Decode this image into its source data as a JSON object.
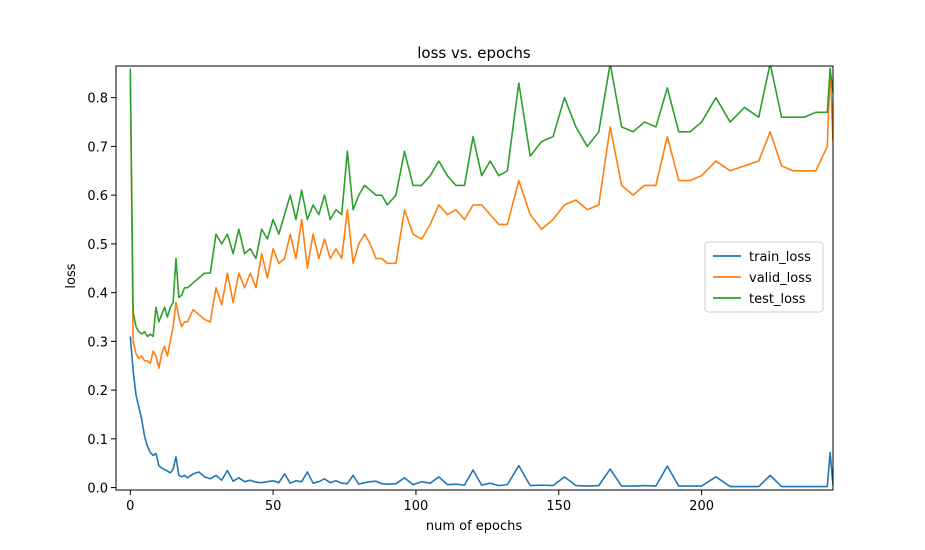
{
  "chart_data": {
    "type": "line",
    "title": "loss vs. epochs",
    "xlabel": "num of epochs",
    "ylabel": "loss",
    "xlim": [
      -5,
      246
    ],
    "ylim": [
      -0.005,
      0.865
    ],
    "xticks": [
      0,
      50,
      100,
      150,
      200
    ],
    "yticks": [
      0.0,
      0.1,
      0.2,
      0.3,
      0.4,
      0.5,
      0.6,
      0.7,
      0.8
    ],
    "grid": false,
    "legend_position": "center-right",
    "series": [
      {
        "name": "train_loss",
        "color": "#1f77b4",
        "x": [
          0,
          1,
          2,
          3,
          4,
          5,
          6,
          7,
          8,
          9,
          10,
          11,
          12,
          13,
          14,
          15,
          16,
          17,
          18,
          19,
          20,
          22,
          24,
          26,
          28,
          30,
          32,
          34,
          36,
          38,
          40,
          42,
          44,
          46,
          48,
          50,
          52,
          54,
          56,
          58,
          60,
          62,
          64,
          66,
          68,
          70,
          72,
          74,
          76,
          78,
          80,
          82,
          84,
          86,
          88,
          90,
          93,
          96,
          99,
          102,
          105,
          108,
          111,
          114,
          117,
          120,
          123,
          126,
          129,
          132,
          136,
          140,
          144,
          148,
          152,
          156,
          160,
          164,
          168,
          172,
          176,
          180,
          184,
          188,
          192,
          196,
          200,
          205,
          210,
          215,
          220,
          224,
          228,
          232,
          236,
          240,
          244,
          245,
          246
        ],
        "y": [
          0.31,
          0.24,
          0.19,
          0.165,
          0.14,
          0.105,
          0.085,
          0.072,
          0.066,
          0.07,
          0.045,
          0.04,
          0.037,
          0.034,
          0.03,
          0.038,
          0.063,
          0.025,
          0.022,
          0.025,
          0.02,
          0.028,
          0.032,
          0.022,
          0.018,
          0.025,
          0.015,
          0.035,
          0.013,
          0.02,
          0.012,
          0.015,
          0.011,
          0.01,
          0.012,
          0.014,
          0.01,
          0.028,
          0.009,
          0.014,
          0.012,
          0.032,
          0.009,
          0.012,
          0.018,
          0.01,
          0.014,
          0.009,
          0.008,
          0.025,
          0.007,
          0.01,
          0.012,
          0.013,
          0.008,
          0.007,
          0.008,
          0.02,
          0.006,
          0.012,
          0.009,
          0.022,
          0.006,
          0.007,
          0.005,
          0.036,
          0.005,
          0.009,
          0.004,
          0.006,
          0.045,
          0.004,
          0.005,
          0.004,
          0.022,
          0.004,
          0.003,
          0.004,
          0.038,
          0.003,
          0.003,
          0.004,
          0.003,
          0.044,
          0.003,
          0.003,
          0.003,
          0.022,
          0.002,
          0.002,
          0.002,
          0.025,
          0.002,
          0.002,
          0.002,
          0.002,
          0.002,
          0.072,
          0.004
        ]
      },
      {
        "name": "valid_loss",
        "color": "#ff7f0e",
        "x": [
          0,
          1,
          2,
          3,
          4,
          5,
          6,
          7,
          8,
          9,
          10,
          11,
          12,
          13,
          14,
          15,
          16,
          17,
          18,
          19,
          20,
          22,
          24,
          26,
          28,
          30,
          32,
          34,
          36,
          38,
          40,
          42,
          44,
          46,
          48,
          50,
          52,
          54,
          56,
          58,
          60,
          62,
          64,
          66,
          68,
          70,
          72,
          74,
          76,
          78,
          80,
          82,
          84,
          86,
          88,
          90,
          93,
          96,
          99,
          102,
          105,
          108,
          111,
          114,
          117,
          120,
          123,
          126,
          129,
          132,
          136,
          140,
          144,
          148,
          152,
          156,
          160,
          164,
          168,
          172,
          176,
          180,
          184,
          188,
          192,
          196,
          200,
          205,
          210,
          215,
          220,
          224,
          228,
          232,
          236,
          240,
          244,
          245,
          246
        ],
        "y": [
          0.85,
          0.3,
          0.275,
          0.265,
          0.27,
          0.26,
          0.26,
          0.255,
          0.28,
          0.27,
          0.245,
          0.275,
          0.29,
          0.27,
          0.3,
          0.33,
          0.38,
          0.35,
          0.33,
          0.34,
          0.34,
          0.365,
          0.355,
          0.345,
          0.34,
          0.41,
          0.375,
          0.44,
          0.38,
          0.44,
          0.41,
          0.44,
          0.41,
          0.48,
          0.43,
          0.49,
          0.46,
          0.47,
          0.52,
          0.47,
          0.55,
          0.45,
          0.52,
          0.47,
          0.51,
          0.47,
          0.49,
          0.47,
          0.57,
          0.46,
          0.5,
          0.52,
          0.5,
          0.47,
          0.47,
          0.46,
          0.46,
          0.57,
          0.52,
          0.51,
          0.54,
          0.58,
          0.56,
          0.57,
          0.55,
          0.58,
          0.58,
          0.56,
          0.54,
          0.54,
          0.63,
          0.56,
          0.53,
          0.55,
          0.58,
          0.59,
          0.57,
          0.58,
          0.74,
          0.62,
          0.6,
          0.62,
          0.62,
          0.72,
          0.63,
          0.63,
          0.64,
          0.67,
          0.65,
          0.66,
          0.67,
          0.73,
          0.66,
          0.65,
          0.65,
          0.65,
          0.7,
          0.86,
          0.71
        ]
      },
      {
        "name": "test_loss",
        "color": "#2ca02c",
        "x": [
          0,
          1,
          2,
          3,
          4,
          5,
          6,
          7,
          8,
          9,
          10,
          11,
          12,
          13,
          14,
          15,
          16,
          17,
          18,
          19,
          20,
          22,
          24,
          26,
          28,
          30,
          32,
          34,
          36,
          38,
          40,
          42,
          44,
          46,
          48,
          50,
          52,
          54,
          56,
          58,
          60,
          62,
          64,
          66,
          68,
          70,
          72,
          74,
          76,
          78,
          80,
          82,
          84,
          86,
          88,
          90,
          93,
          96,
          99,
          102,
          105,
          108,
          111,
          114,
          117,
          120,
          123,
          126,
          129,
          132,
          136,
          140,
          144,
          148,
          152,
          156,
          160,
          164,
          168,
          172,
          176,
          180,
          184,
          188,
          192,
          196,
          200,
          205,
          210,
          215,
          220,
          224,
          228,
          232,
          236,
          240,
          244,
          245,
          246
        ],
        "y": [
          0.86,
          0.36,
          0.33,
          0.32,
          0.315,
          0.32,
          0.31,
          0.315,
          0.31,
          0.37,
          0.34,
          0.355,
          0.37,
          0.35,
          0.37,
          0.38,
          0.47,
          0.39,
          0.395,
          0.41,
          0.41,
          0.42,
          0.43,
          0.44,
          0.44,
          0.52,
          0.5,
          0.52,
          0.48,
          0.53,
          0.48,
          0.49,
          0.47,
          0.53,
          0.51,
          0.55,
          0.52,
          0.56,
          0.6,
          0.55,
          0.61,
          0.55,
          0.58,
          0.56,
          0.6,
          0.55,
          0.57,
          0.56,
          0.69,
          0.57,
          0.6,
          0.62,
          0.61,
          0.6,
          0.6,
          0.58,
          0.6,
          0.69,
          0.62,
          0.62,
          0.64,
          0.67,
          0.64,
          0.62,
          0.62,
          0.72,
          0.64,
          0.67,
          0.64,
          0.65,
          0.83,
          0.68,
          0.71,
          0.72,
          0.8,
          0.74,
          0.7,
          0.73,
          0.87,
          0.74,
          0.73,
          0.75,
          0.74,
          0.82,
          0.73,
          0.73,
          0.75,
          0.8,
          0.75,
          0.78,
          0.76,
          0.87,
          0.76,
          0.76,
          0.76,
          0.77,
          0.77,
          0.86,
          0.81
        ]
      }
    ]
  }
}
